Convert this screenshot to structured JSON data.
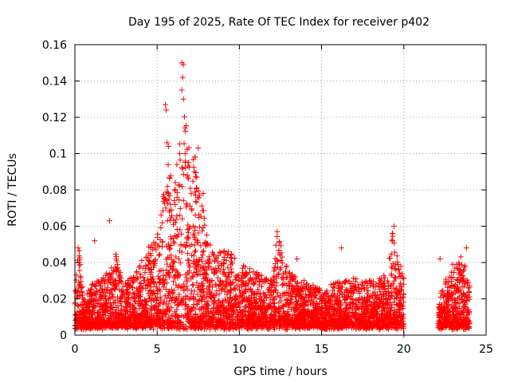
{
  "chart_data": {
    "type": "scatter",
    "title": "Day 195 of 2025, Rate Of TEC Index for receiver p402",
    "xlabel": "GPS time / hours",
    "ylabel": "ROTI / TECUs",
    "xlim": [
      0,
      25
    ],
    "ylim": [
      0,
      0.16
    ],
    "x_ticks": [
      0,
      5,
      10,
      15,
      20,
      25
    ],
    "x_tick_labels": [
      "0",
      "5",
      "10",
      "15",
      "20",
      "25"
    ],
    "y_ticks": [
      0,
      0.02,
      0.04,
      0.06,
      0.08,
      0.1,
      0.12,
      0.14,
      0.16
    ],
    "y_tick_labels": [
      "0",
      "0.02",
      "0.04",
      "0.06",
      "0.08",
      "0.1",
      "0.12",
      "0.14",
      "0.16"
    ],
    "grid": true,
    "marker": "+",
    "marker_color": "#ff0000",
    "data_gap_hours": [
      20.0,
      22.1
    ],
    "series": [
      {
        "name": "ROTI",
        "envelope_x": [
          0.0,
          0.25,
          0.5,
          1.0,
          2.0,
          2.5,
          3.0,
          3.5,
          4.0,
          4.5,
          5.0,
          5.3,
          5.6,
          6.0,
          6.3,
          6.6,
          7.0,
          7.3,
          7.6,
          8.0,
          8.5,
          9.0,
          9.5,
          10.0,
          11.0,
          12.0,
          12.3,
          13.0,
          14.0,
          15.0,
          16.0,
          17.0,
          18.0,
          19.0,
          19.3,
          19.7,
          20.0,
          22.1,
          22.5,
          23.0,
          23.5,
          24.0
        ],
        "envelope_max_y": [
          0.03,
          0.048,
          0.02,
          0.028,
          0.035,
          0.045,
          0.03,
          0.032,
          0.04,
          0.05,
          0.055,
          0.07,
          0.105,
          0.08,
          0.095,
          0.15,
          0.095,
          0.1,
          0.08,
          0.06,
          0.045,
          0.048,
          0.045,
          0.04,
          0.035,
          0.03,
          0.057,
          0.035,
          0.03,
          0.025,
          0.03,
          0.032,
          0.03,
          0.035,
          0.058,
          0.04,
          0.035,
          0.02,
          0.03,
          0.04,
          0.045,
          0.035
        ],
        "annotated_points": [
          {
            "x": 6.5,
            "y": 0.15
          },
          {
            "x": 6.6,
            "y": 0.149
          },
          {
            "x": 6.55,
            "y": 0.142
          },
          {
            "x": 6.5,
            "y": 0.135
          },
          {
            "x": 6.6,
            "y": 0.13
          },
          {
            "x": 5.5,
            "y": 0.127
          },
          {
            "x": 5.55,
            "y": 0.124
          },
          {
            "x": 5.6,
            "y": 0.106
          },
          {
            "x": 5.7,
            "y": 0.104
          },
          {
            "x": 7.5,
            "y": 0.103
          },
          {
            "x": 7.3,
            "y": 0.098
          },
          {
            "x": 6.7,
            "y": 0.1
          },
          {
            "x": 6.2,
            "y": 0.094
          },
          {
            "x": 7.4,
            "y": 0.087
          },
          {
            "x": 5.5,
            "y": 0.075
          },
          {
            "x": 7.8,
            "y": 0.078
          },
          {
            "x": 2.1,
            "y": 0.063
          },
          {
            "x": 12.3,
            "y": 0.057
          },
          {
            "x": 19.4,
            "y": 0.06
          },
          {
            "x": 19.3,
            "y": 0.056
          },
          {
            "x": 1.2,
            "y": 0.052
          },
          {
            "x": 0.2,
            "y": 0.048
          },
          {
            "x": 16.2,
            "y": 0.048
          },
          {
            "x": 23.8,
            "y": 0.048
          },
          {
            "x": 22.2,
            "y": 0.042
          },
          {
            "x": 13.5,
            "y": 0.042
          },
          {
            "x": 20.0,
            "y": 0.0
          }
        ]
      }
    ]
  }
}
